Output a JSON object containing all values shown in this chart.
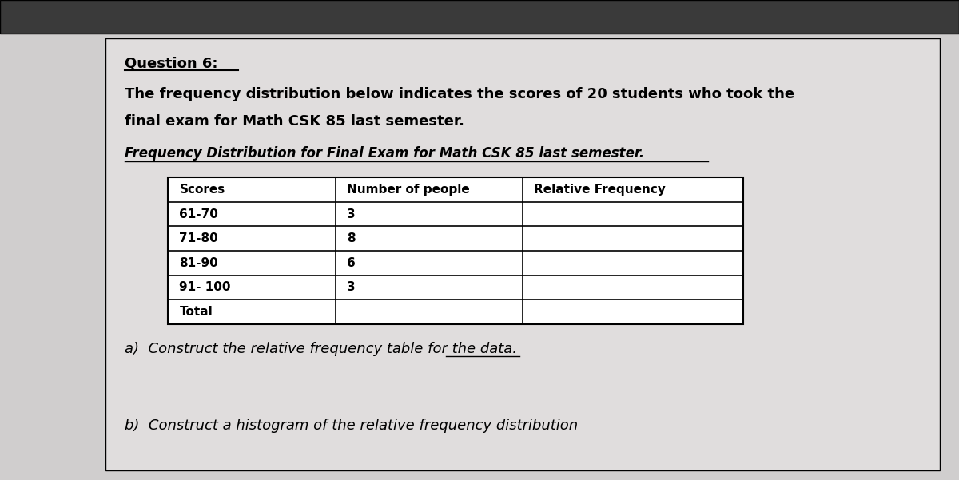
{
  "title_underlined": "Question 6:",
  "paragraph1": "The frequency distribution below indicates the scores of 20 students who took the",
  "paragraph2": "final exam for Math CSK 85 last semester.",
  "table_title": "Frequency Distribution for Final Exam for Math CSK 85 last semester.",
  "col_headers": [
    "Scores",
    "Number of people",
    "Relative Frequency"
  ],
  "rows": [
    [
      "61-70",
      "3",
      ""
    ],
    [
      "71-80",
      "8",
      ""
    ],
    [
      "81-90",
      "6",
      ""
    ],
    [
      "91- 100",
      "3",
      ""
    ],
    [
      "Total",
      "",
      ""
    ]
  ],
  "part_a": "a)  Construct the relative frequency table for the data.",
  "part_b": "b)  Construct a histogram of the relative frequency distribution",
  "bg_color": "#d0cece",
  "content_bg": "#e0dddd",
  "table_bg": "#ffffff",
  "text_color": "#000000",
  "top_bar_color": "#3a3a3a"
}
